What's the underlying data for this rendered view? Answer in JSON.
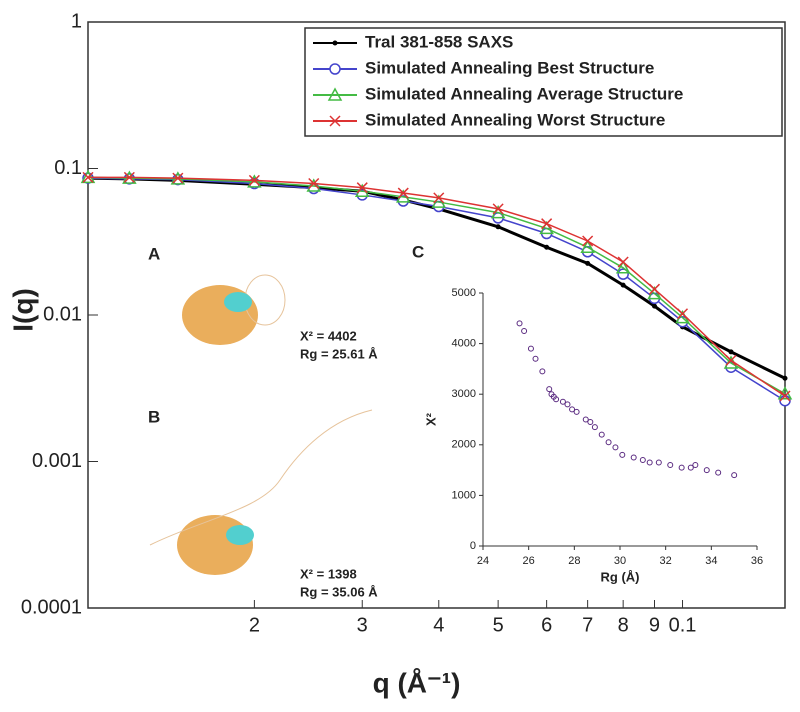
{
  "chart_data": [
    {
      "type": "line",
      "xscale": "log",
      "yscale": "log",
      "grid": false,
      "legend": "upper right",
      "x_label": "q (Å⁻¹)",
      "y_label": "I(q)",
      "xlim": [
        0.0107,
        0.147
      ],
      "ylim": [
        0.0001,
        1
      ],
      "xticks": [
        {
          "value": 0.02,
          "label": "2"
        },
        {
          "value": 0.03,
          "label": "3"
        },
        {
          "value": 0.04,
          "label": "4"
        },
        {
          "value": 0.05,
          "label": "5"
        },
        {
          "value": 0.06,
          "label": "6"
        },
        {
          "value": 0.07,
          "label": "7"
        },
        {
          "value": 0.08,
          "label": "8"
        },
        {
          "value": 0.09,
          "label": "9"
        },
        0.1
      ],
      "yticks": [
        0.0001,
        0.001,
        0.01,
        0.1,
        1
      ],
      "x": [
        0.0107,
        0.0125,
        0.015,
        0.02,
        0.025,
        0.03,
        0.035,
        0.04,
        0.05,
        0.06,
        0.07,
        0.08,
        0.09,
        0.1,
        0.12,
        0.147
      ],
      "series": [
        {
          "name": "Tral 381-858 SAXS",
          "color": "#000000",
          "marker": "dot",
          "values": [
            0.086,
            0.085,
            0.083,
            0.078,
            0.074,
            0.07,
            0.061,
            0.053,
            0.04,
            0.029,
            0.0225,
            0.016,
            0.0115,
            0.0083,
            0.0056,
            0.0037
          ]
        },
        {
          "name": "Simulated Annealing Best Structure",
          "color": "#4444cc",
          "marker": "circle",
          "values": [
            0.086,
            0.085,
            0.084,
            0.079,
            0.073,
            0.066,
            0.06,
            0.055,
            0.046,
            0.036,
            0.027,
            0.019,
            0.013,
            0.009,
            0.0044,
            0.0026
          ]
        },
        {
          "name": "Simulated Annealing Average Structure",
          "color": "#44bb44",
          "marker": "triangle",
          "values": [
            0.087,
            0.086,
            0.085,
            0.081,
            0.076,
            0.07,
            0.064,
            0.059,
            0.05,
            0.039,
            0.029,
            0.021,
            0.014,
            0.0096,
            0.0047,
            0.0029
          ]
        },
        {
          "name": "Simulated Annealing Worst Structure",
          "color": "#dd3333",
          "marker": "cross",
          "values": [
            0.087,
            0.087,
            0.086,
            0.083,
            0.079,
            0.074,
            0.068,
            0.063,
            0.053,
            0.042,
            0.032,
            0.023,
            0.015,
            0.0102,
            0.0049,
            0.0028
          ]
        }
      ],
      "panel_labels": [
        "A",
        "B",
        "C"
      ],
      "annotations": [
        "X² = 4402",
        "Rg = 25.61 Å",
        "X² = 1398",
        "Rg = 35.06 Å"
      ]
    },
    {
      "type": "scatter",
      "x_label": "Rg (Å)",
      "y_label": "X²",
      "color": "#5a2a80",
      "xlim": [
        24,
        36
      ],
      "ylim": [
        0,
        5000
      ],
      "xticks": [
        24,
        26,
        28,
        30,
        32,
        34,
        36
      ],
      "yticks": [
        0,
        1000,
        2000,
        3000,
        4000,
        5000
      ],
      "x": [
        25.6,
        25.8,
        26.1,
        26.3,
        26.6,
        26.9,
        27.0,
        27.1,
        27.2,
        27.5,
        27.7,
        27.9,
        28.1,
        28.5,
        28.7,
        28.9,
        29.2,
        29.5,
        29.8,
        30.1,
        30.6,
        31.0,
        31.3,
        31.7,
        32.2,
        32.7,
        33.1,
        33.3,
        33.8,
        34.3,
        35.0
      ],
      "values": [
        4400,
        4250,
        3900,
        3700,
        3450,
        3100,
        3000,
        2950,
        2900,
        2850,
        2800,
        2700,
        2650,
        2500,
        2450,
        2350,
        2200,
        2050,
        1950,
        1800,
        1750,
        1700,
        1650,
        1650,
        1600,
        1550,
        1550,
        1600,
        1500,
        1450,
        1400
      ]
    }
  ]
}
